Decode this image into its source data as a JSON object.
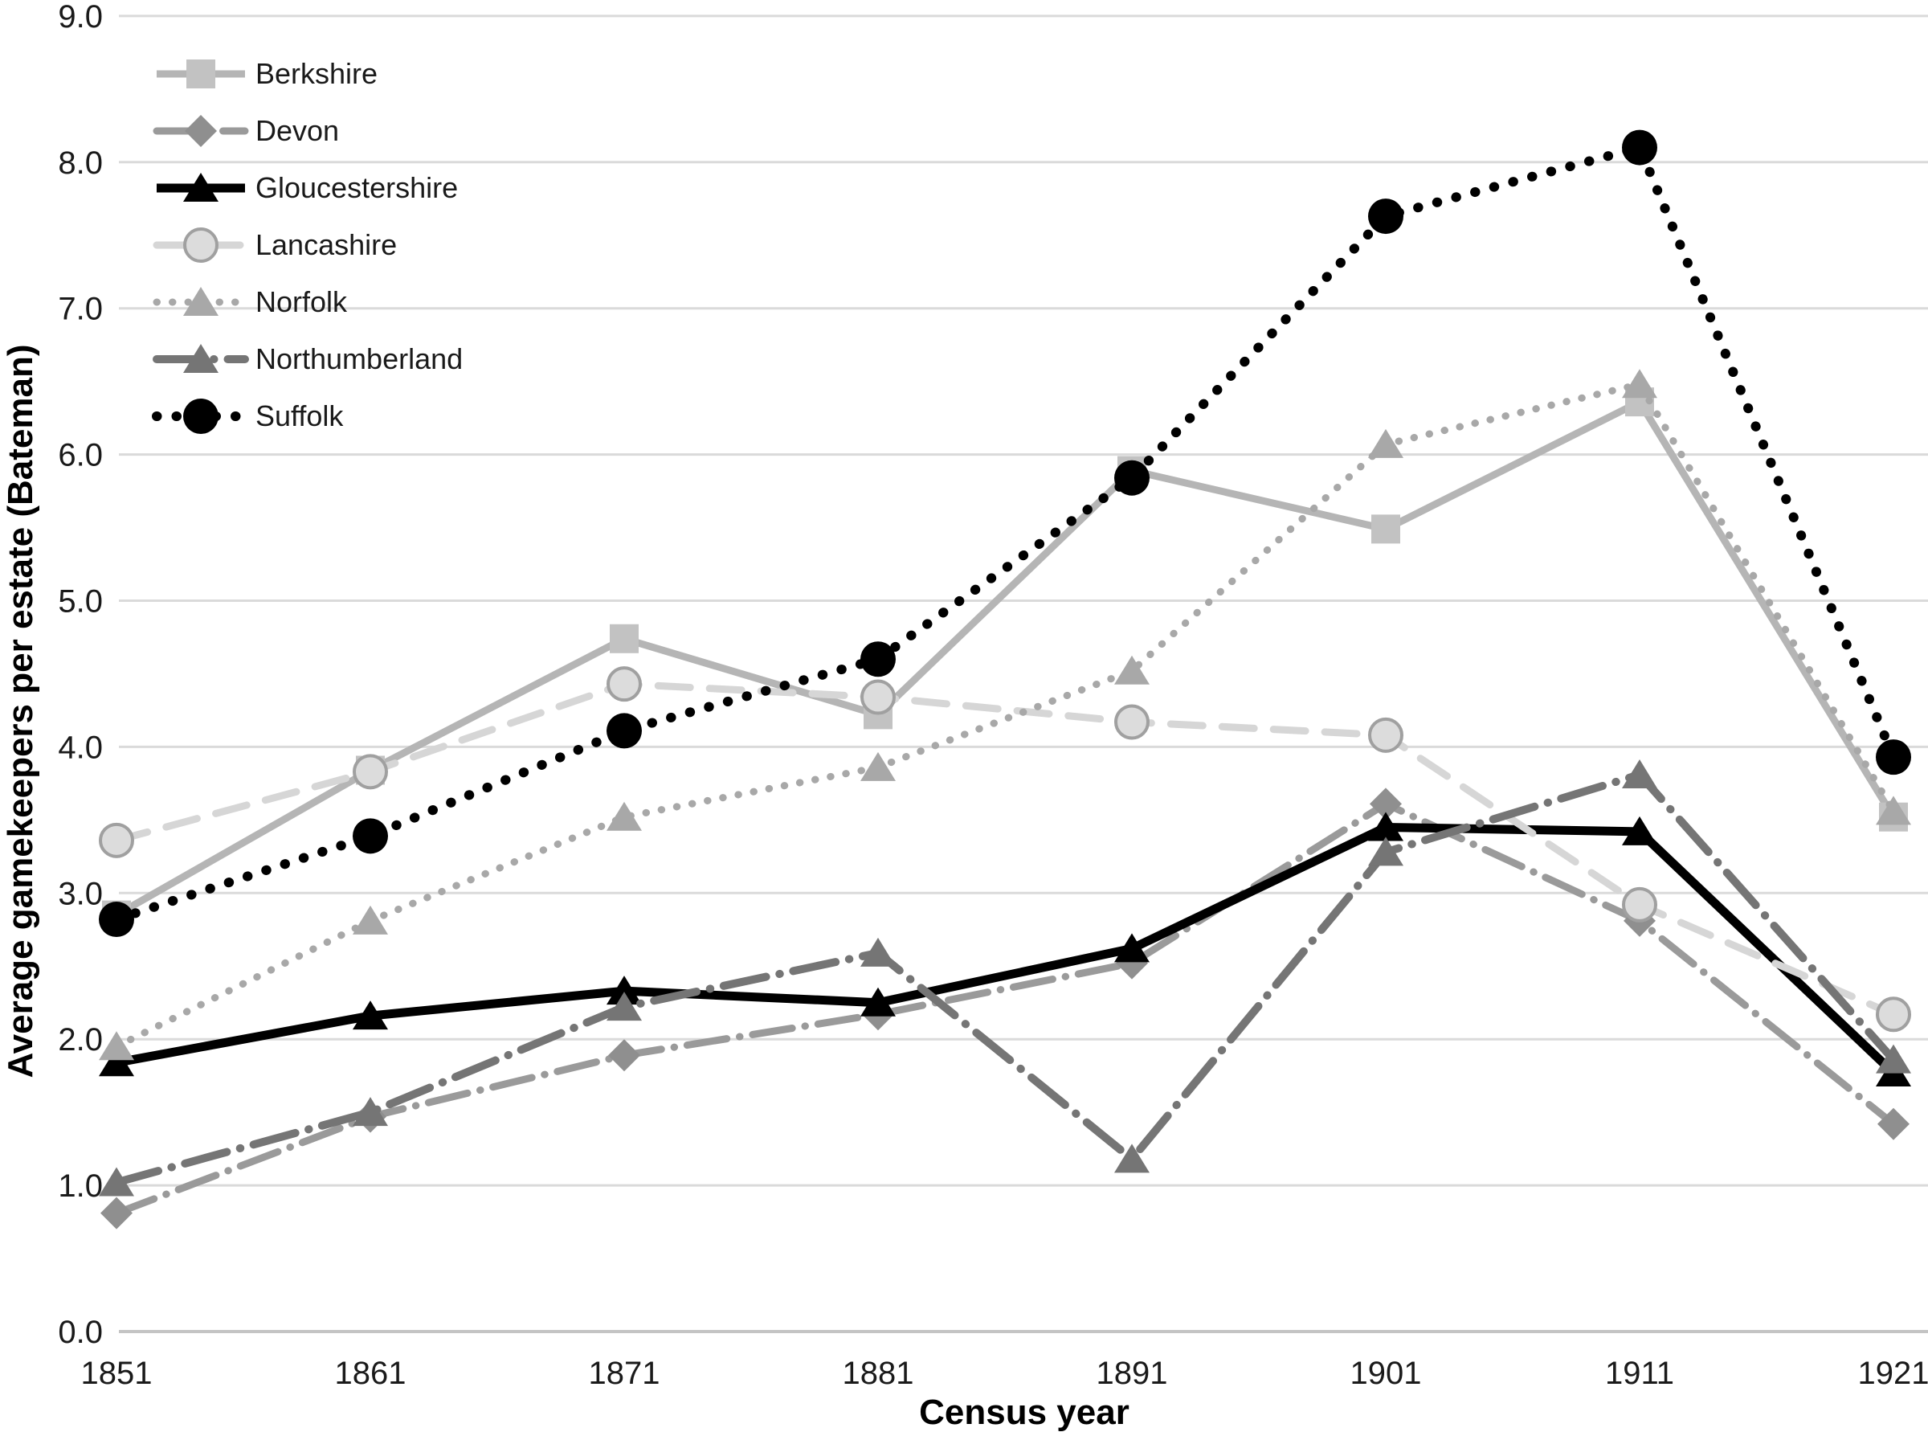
{
  "figure": {
    "background_color": "#ffffff",
    "grid_color": "#dadada",
    "axis_line_color": "#c4c4c4",
    "text_color": "#1a1a1a"
  },
  "chart_data": {
    "type": "line",
    "title": "",
    "xlabel": "Census year",
    "ylabel": "Average gamekeepers per estate (Bateman)",
    "x_categories": [
      "1851",
      "1861",
      "1871",
      "1881",
      "1891",
      "1901",
      "1911",
      "1921"
    ],
    "y_ticks": [
      "0.0",
      "1.0",
      "2.0",
      "3.0",
      "4.0",
      "5.0",
      "6.0",
      "7.0",
      "8.0",
      "9.0"
    ],
    "ylim": [
      0,
      9
    ],
    "grid": "horizontal-only",
    "legend_position": "top-left",
    "series": [
      {
        "name": "Berkshire",
        "values": [
          2.85,
          3.84,
          4.74,
          4.22,
          5.89,
          5.49,
          6.36,
          3.52
        ],
        "color": "#b5b5b5",
        "line_style": "solid",
        "stroke_width": 9,
        "dash_array": "none",
        "marker": "square",
        "marker_color": "#c2c2c2"
      },
      {
        "name": "Devon",
        "values": [
          0.81,
          1.47,
          1.89,
          2.17,
          2.52,
          3.61,
          2.81,
          1.42
        ],
        "color": "#9a9a9a",
        "line_style": "dash-dot",
        "stroke_width": 9,
        "dash_array": "50 16 0.5 16",
        "marker": "diamond",
        "marker_color": "#8f8f8f"
      },
      {
        "name": "Gloucestershire",
        "values": [
          1.84,
          2.16,
          2.33,
          2.25,
          2.62,
          3.45,
          3.42,
          1.77
        ],
        "color": "#000000",
        "line_style": "solid",
        "stroke_width": 11,
        "dash_array": "none",
        "marker": "triangle",
        "marker_color": "#000000"
      },
      {
        "name": "Lancashire",
        "values": [
          3.36,
          3.83,
          4.43,
          4.34,
          4.17,
          4.08,
          2.92,
          2.17
        ],
        "color": "#d6d6d6",
        "line_style": "dashed",
        "stroke_width": 9,
        "dash_array": "40 24",
        "marker": "circle-outline",
        "marker_color": "#dcdcdc",
        "marker_stroke": "#a0a0a0"
      },
      {
        "name": "Norfolk",
        "values": [
          1.95,
          2.81,
          3.52,
          3.86,
          4.52,
          6.07,
          6.48,
          3.56
        ],
        "color": "#a8a8a8",
        "line_style": "dotted",
        "stroke_width": 9,
        "dash_array": "0.5 19",
        "marker": "triangle",
        "marker_color": "#a8a8a8"
      },
      {
        "name": "Northumberland",
        "values": [
          1.02,
          1.5,
          2.22,
          2.59,
          1.18,
          3.28,
          3.81,
          1.86
        ],
        "color": "#757575",
        "line_style": "dash-dot",
        "stroke_width": 10,
        "dash_array": "54 17 0.5 17",
        "marker": "triangle",
        "marker_color": "#757575"
      },
      {
        "name": "Suffolk",
        "values": [
          2.82,
          3.39,
          4.11,
          4.6,
          5.84,
          7.63,
          8.1,
          3.93
        ],
        "color": "#000000",
        "line_style": "dotted",
        "stroke_width": 12,
        "dash_array": "0.5 24",
        "marker": "circle",
        "marker_color": "#000000"
      }
    ]
  }
}
